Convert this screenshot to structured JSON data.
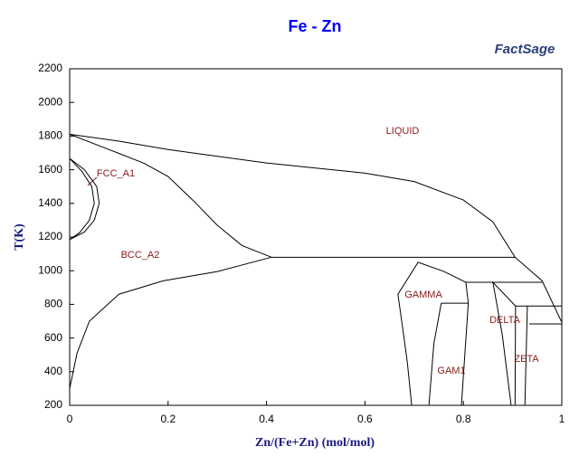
{
  "chart_data": {
    "type": "line",
    "title": "Fe - Zn",
    "logo": "FactSage",
    "x_label": "Zn/(Fe+Zn) (mol/mol)",
    "y_label": "T(K)",
    "xlim": [
      0,
      1
    ],
    "ylim": [
      200,
      2200
    ],
    "xticks": [
      0,
      0.2,
      0.4,
      0.6,
      0.8,
      1
    ],
    "yticks": [
      200,
      400,
      600,
      800,
      1000,
      1200,
      1400,
      1600,
      1800,
      2000,
      2200
    ],
    "series": [
      {
        "color": "#000000",
        "x": [
          0,
          0.1,
          0.2,
          0.3,
          0.4,
          0.5,
          0.6,
          0.7,
          0.8,
          0.86,
          0.905,
          0.96,
          1
        ],
        "values": [
          1811,
          1770,
          1720,
          1680,
          1640,
          1610,
          1580,
          1530,
          1420,
          1290,
          1080,
          940,
          693
        ]
      },
      {
        "color": "#000000",
        "x": [
          0,
          0.08,
          0.15,
          0.2,
          0.25,
          0.3,
          0.35,
          0.41
        ],
        "values": [
          1811,
          1720,
          1640,
          1560,
          1420,
          1270,
          1150,
          1080
        ]
      },
      {
        "color": "#000000",
        "x": [
          0.41,
          0.905
        ],
        "values": [
          1080,
          1080
        ]
      },
      {
        "color": "#000000",
        "x": [
          0,
          0.015,
          0.04,
          0.1,
          0.19,
          0.3,
          0.41
        ],
        "values": [
          300,
          510,
          700,
          860,
          940,
          995,
          1080
        ]
      },
      {
        "color": "#000000",
        "x": [
          0,
          0.03,
          0.055,
          0.06,
          0.05,
          0.03,
          0
        ],
        "values": [
          1667,
          1600,
          1500,
          1400,
          1300,
          1230,
          1185
        ]
      },
      {
        "color": "#000000",
        "x": [
          0,
          0.025,
          0.045,
          0.05,
          0.04,
          0.02,
          0
        ],
        "values": [
          1667,
          1590,
          1500,
          1400,
          1300,
          1225,
          1185
        ]
      },
      {
        "color": "#000000",
        "x": [
          0.695,
          0.686,
          0.676,
          0.667,
          0.708,
          0.76,
          0.805
        ],
        "values": [
          200,
          458,
          673,
          860,
          1050,
          996,
          931
        ]
      },
      {
        "color": "#000000",
        "x": [
          0.805,
          0.96
        ],
        "values": [
          931,
          931
        ]
      },
      {
        "color": "#000000",
        "x": [
          0.755,
          0.81
        ],
        "values": [
          807,
          807
        ]
      },
      {
        "color": "#000000",
        "x": [
          0.73,
          0.74,
          0.755
        ],
        "values": [
          200,
          566,
          807
        ]
      },
      {
        "color": "#000000",
        "x": [
          0.796,
          0.81,
          0.805
        ],
        "values": [
          200,
          807,
          931
        ]
      },
      {
        "color": "#000000",
        "x": [
          0.897,
          0.879,
          0.86,
          0.906
        ],
        "values": [
          200,
          620,
          931,
          790
        ]
      },
      {
        "color": "#000000",
        "x": [
          0.906,
          1
        ],
        "values": [
          790,
          790
        ]
      },
      {
        "color": "#000000",
        "x": [
          0.905,
          0.906
        ],
        "values": [
          200,
          790
        ]
      },
      {
        "color": "#000000",
        "x": [
          0.925,
          0.93
        ],
        "values": [
          200,
          790
        ]
      },
      {
        "color": "#000000",
        "x": [
          0.934,
          1
        ],
        "values": [
          684,
          684
        ]
      }
    ],
    "annotations": [
      "LIQUID",
      "FCC_A1",
      "BCC_A2",
      "GAMMA",
      "DELTA",
      "GAM1",
      "ZETA"
    ]
  }
}
